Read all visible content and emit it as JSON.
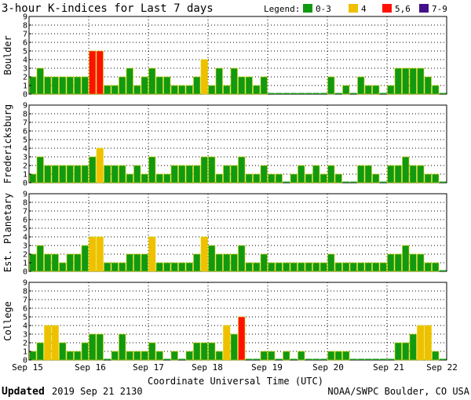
{
  "chart_data": {
    "type": "bar",
    "title": "3-hour K-indices for Last 7 days",
    "legend": {
      "label": "Legend:",
      "placement": "top-right",
      "entries": [
        {
          "label": "0-3",
          "color": "#119911"
        },
        {
          "label": "4",
          "color": "#f0c000"
        },
        {
          "label": "5,6",
          "color": "#ff1100"
        },
        {
          "label": "7-9",
          "color": "#44108a"
        }
      ]
    },
    "xlabel": "Coordinate Universal Time (UTC)",
    "x_ticks": [
      "Sep 15",
      "Sep 16",
      "Sep 17",
      "Sep 18",
      "Sep 19",
      "Sep 20",
      "Sep 21",
      "Sep 22"
    ],
    "ylim": [
      0,
      9
    ],
    "y_ticks": [
      "0",
      "1",
      "2",
      "3",
      "4",
      "5",
      "6",
      "7",
      "8",
      "9"
    ],
    "grid": true,
    "intervals_per_day": 8,
    "series": [
      {
        "name": "Boulder",
        "values": [
          2,
          3,
          2,
          2,
          2,
          2,
          2,
          2,
          5,
          5,
          1,
          1,
          2,
          3,
          1,
          2,
          3,
          2,
          2,
          1,
          1,
          1,
          2,
          4,
          1,
          3,
          1,
          3,
          2,
          2,
          1,
          2,
          0,
          0,
          0,
          0,
          0,
          0,
          0,
          0,
          2,
          0,
          1,
          0,
          2,
          1,
          1,
          0,
          1,
          3,
          3,
          3,
          3,
          2,
          1,
          0
        ]
      },
      {
        "name": "Fredericksburg",
        "values": [
          1,
          3,
          2,
          2,
          2,
          2,
          2,
          2,
          3,
          4,
          2,
          2,
          2,
          1,
          2,
          1,
          3,
          1,
          1,
          2,
          2,
          2,
          2,
          3,
          3,
          1,
          2,
          2,
          3,
          1,
          1,
          2,
          1,
          1,
          0,
          1,
          2,
          1,
          2,
          1,
          2,
          1,
          0,
          0,
          2,
          2,
          1,
          0,
          2,
          2,
          3,
          2,
          2,
          1,
          1,
          0
        ]
      },
      {
        "name": "Est. Planetary",
        "values": [
          2,
          3,
          2,
          2,
          1,
          2,
          2,
          3,
          4,
          4,
          1,
          1,
          1,
          2,
          2,
          2,
          4,
          1,
          1,
          1,
          1,
          1,
          2,
          4,
          3,
          2,
          2,
          2,
          3,
          1,
          1,
          2,
          1,
          1,
          1,
          1,
          1,
          1,
          1,
          1,
          2,
          1,
          1,
          1,
          1,
          1,
          1,
          1,
          2,
          2,
          3,
          2,
          2,
          1,
          1,
          0
        ]
      },
      {
        "name": "College",
        "values": [
          1,
          2,
          4,
          4,
          2,
          1,
          1,
          2,
          3,
          3,
          0,
          1,
          3,
          1,
          1,
          1,
          2,
          1,
          0,
          1,
          0,
          1,
          2,
          2,
          2,
          1,
          4,
          3,
          5,
          0,
          0,
          1,
          1,
          0,
          1,
          0,
          1,
          0,
          0,
          0,
          1,
          1,
          1,
          0,
          0,
          0,
          0,
          0,
          0,
          2,
          2,
          3,
          4,
          4,
          1,
          0
        ]
      }
    ]
  },
  "footer": {
    "updated_label": "Updated",
    "updated_value": "2019 Sep 21 2130",
    "credit": "NOAA/SWPC Boulder, CO USA"
  }
}
